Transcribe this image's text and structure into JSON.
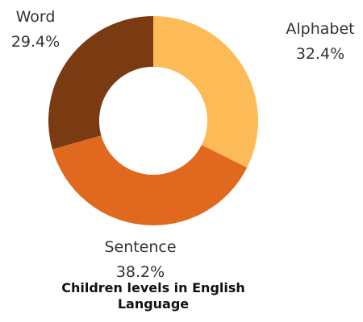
{
  "chart_data": {
    "type": "pie",
    "title": "Children levels in English Language",
    "donut": true,
    "slices": [
      {
        "label": "Alphabet",
        "value": 32.4,
        "value_label": "32.4%",
        "color": "#FDBB57"
      },
      {
        "label": "Sentence",
        "value": 38.2,
        "value_label": "38.2%",
        "color": "#E0691F"
      },
      {
        "label": "Word",
        "value": 29.4,
        "value_label": "29.4%",
        "color": "#7A3A12"
      }
    ],
    "legend": "none"
  }
}
